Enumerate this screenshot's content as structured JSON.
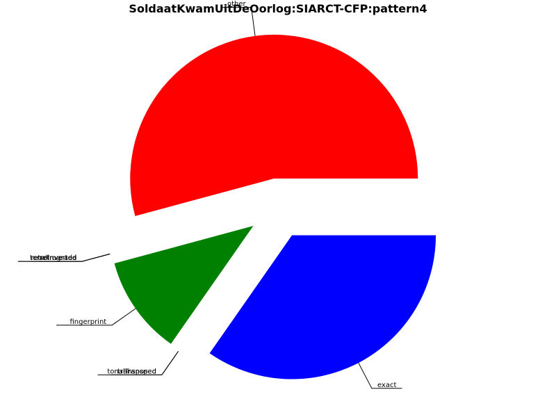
{
  "chart_data": {
    "type": "pie",
    "title": "SoldaatKwamUitDeOorlog:SIARCT-CFP:pattern4",
    "slices": [
      {
        "label": "exact",
        "value": 0.347,
        "color": "#0000ff",
        "explode": true
      },
      {
        "label": "transposed",
        "value": 0.0,
        "color": "#808080",
        "explode": true
      },
      {
        "label": "tonalTransped",
        "value": 0.0,
        "color": "#ffff00",
        "explode": true
      },
      {
        "label": "fingerprint",
        "value": 0.111,
        "color": "#008000",
        "explode": true
      },
      {
        "label": "tonalInverted",
        "value": 0.0,
        "color": "#00ffff",
        "explode": true
      },
      {
        "label": "inverted",
        "value": 0.0,
        "color": "#ff00ff",
        "explode": true
      },
      {
        "label": "retrograde",
        "value": 0.0,
        "color": "#800000",
        "explode": true
      },
      {
        "label": "retroInverted",
        "value": 0.0,
        "color": "#000080",
        "explode": true
      },
      {
        "label": "other",
        "value": 0.542,
        "color": "#ff0000",
        "explode": true
      }
    ],
    "start_angle_deg": 0,
    "direction": "clockwise",
    "legend": "none",
    "label_style": "underlined-with-leader-lines"
  }
}
